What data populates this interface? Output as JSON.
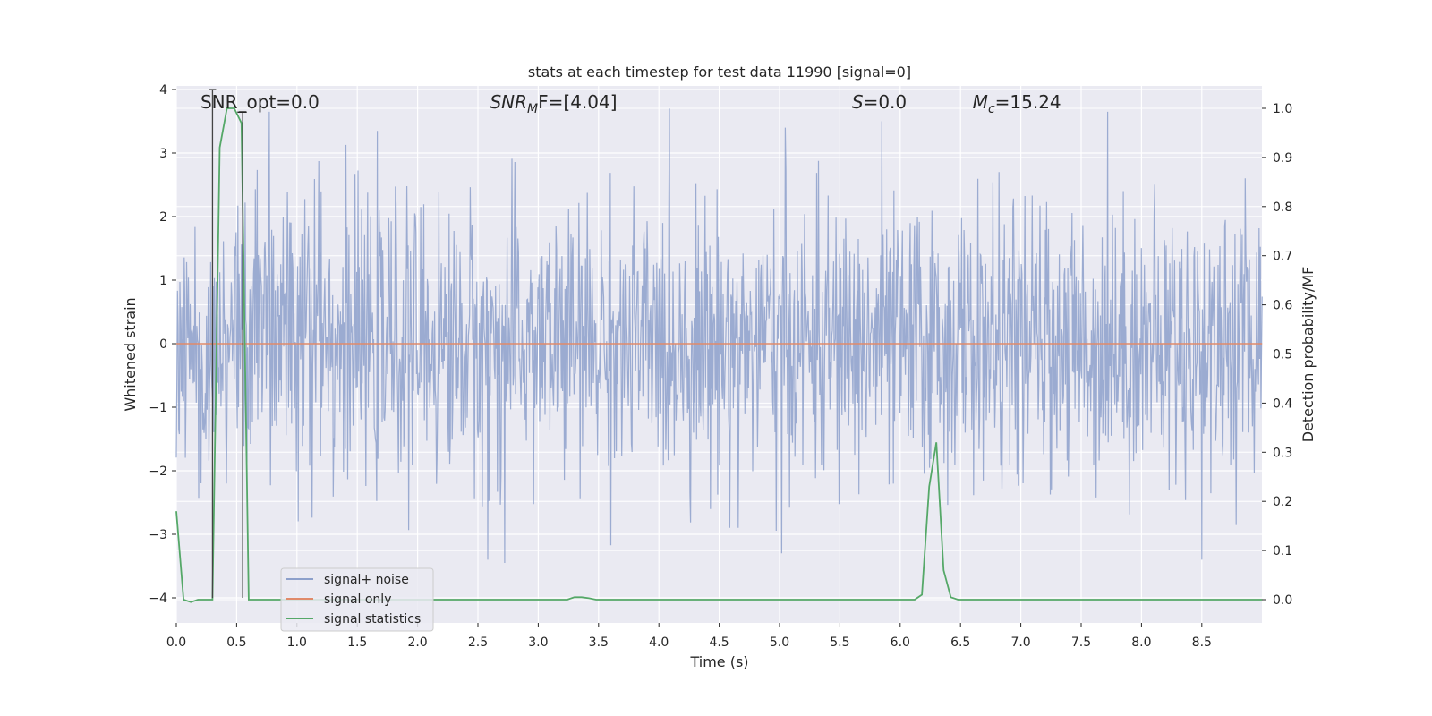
{
  "chart_data": {
    "type": "line",
    "title": "stats at each timestep for test data 11990 [signal=0]",
    "xlabel": "Time (s)",
    "ylabel": "Whitened strain",
    "ylabel_right": "Detection probability/MF",
    "xlim": [
      0.0,
      9.0
    ],
    "ylim": [
      -4.4,
      4.05
    ],
    "ylim_right": [
      -0.047,
      1.035
    ],
    "x_ticks": [
      0.0,
      0.5,
      1.0,
      1.5,
      2.0,
      2.5,
      3.0,
      3.5,
      4.0,
      4.5,
      5.0,
      5.5,
      6.0,
      6.5,
      7.0,
      7.5,
      8.0,
      8.5
    ],
    "x_tick_labels": [
      "0.0",
      "0.5",
      "1.0",
      "1.5",
      "2.0",
      "2.5",
      "3.0",
      "3.5",
      "4.0",
      "4.5",
      "5.0",
      "5.5",
      "6.0",
      "6.5",
      "7.0",
      "7.5",
      "8.0",
      "8.5"
    ],
    "y_ticks": [
      4,
      3,
      2,
      1,
      0,
      -1,
      -2,
      -3,
      -4
    ],
    "y_tick_labels": [
      "4",
      "3",
      "2",
      "1",
      "0",
      "−1",
      "−2",
      "−3",
      "−4"
    ],
    "y_ticks_right": [
      1.0,
      0.9,
      0.8,
      0.7,
      0.6,
      0.5,
      0.4,
      0.3,
      0.2,
      0.1,
      0.0
    ],
    "y_tick_labels_right": [
      "1.0",
      "0.9",
      "0.8",
      "0.7",
      "0.6",
      "0.5",
      "0.4",
      "0.3",
      "0.2",
      "0.1",
      "0.0"
    ],
    "grid": true,
    "legend_position": "lower-left",
    "annotations": [
      {
        "text": "SNR_opt=0.0",
        "x": 0.2
      },
      {
        "text": "SNR_MF=[4.04]",
        "x": 2.6,
        "italic_part": "SNR",
        "sub": "M",
        "tail": "F=[4.04]"
      },
      {
        "text": "S=0.0",
        "x": 5.6,
        "italic_part": "S",
        "tail": "=0.0"
      },
      {
        "text": "M_c=15.24",
        "x": 6.6,
        "italic_part": "M",
        "sub": "c",
        "tail": "=15.24"
      }
    ],
    "vlines": [
      {
        "x": 0.3,
        "y_range": [
          -4.0,
          4.0
        ]
      },
      {
        "x": 0.55,
        "y_range": [
          -4.0,
          3.65
        ]
      }
    ],
    "series": [
      {
        "name": "signal+ noise",
        "axis": "left",
        "color": "#8da0cb",
        "kind": "dense-noise",
        "n_points": 1800,
        "std": 1.0,
        "envelope": [
          -3.45,
          3.7
        ],
        "peaks": [
          {
            "x": 0.77,
            "y": 3.65
          },
          {
            "x": 5.85,
            "y": 3.5
          },
          {
            "x": 5.05,
            "y": 3.4
          },
          {
            "x": 7.72,
            "y": 3.65
          },
          {
            "x": 2.58,
            "y": -3.4
          },
          {
            "x": 2.72,
            "y": -3.45
          },
          {
            "x": 5.02,
            "y": -3.3
          },
          {
            "x": 8.5,
            "y": -3.4
          }
        ]
      },
      {
        "name": "signal only",
        "axis": "left",
        "color": "#e08a6a",
        "x": [
          0.0,
          9.0
        ],
        "y": [
          0.0,
          0.0
        ]
      },
      {
        "name": "signal statistics",
        "axis": "right",
        "color": "#55a868",
        "x": [
          0.0,
          0.06,
          0.12,
          0.18,
          0.24,
          0.3,
          0.36,
          0.42,
          0.48,
          0.54,
          0.6,
          0.66,
          0.72,
          3.24,
          3.3,
          3.36,
          3.42,
          3.48,
          6.0,
          6.06,
          6.12,
          6.18,
          6.24,
          6.3,
          6.36,
          6.42,
          6.48,
          9.0
        ],
        "y": [
          0.18,
          0.0,
          -0.005,
          0.0,
          0.0,
          0.0,
          0.92,
          1.0,
          1.0,
          0.97,
          0.0,
          0.0,
          0.0,
          0.0,
          0.005,
          0.005,
          0.003,
          0.0,
          0.0,
          0.0,
          0.0,
          0.01,
          0.23,
          0.32,
          0.06,
          0.005,
          0.0,
          0.0
        ]
      }
    ]
  }
}
